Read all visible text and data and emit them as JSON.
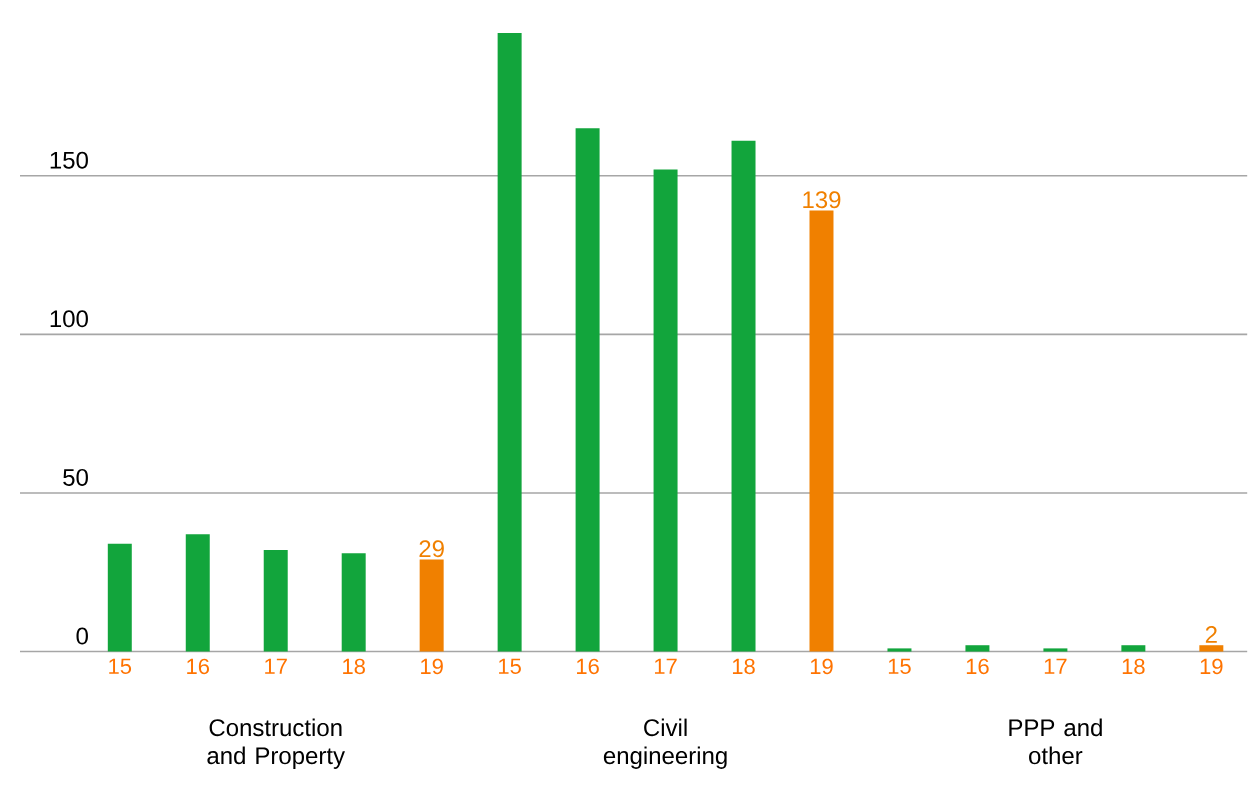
{
  "chart_data": {
    "type": "bar",
    "categories": [
      "15",
      "16",
      "17",
      "18",
      "19",
      "15",
      "16",
      "17",
      "18",
      "19",
      "15",
      "16",
      "17",
      "18",
      "19"
    ],
    "values": [
      34,
      37,
      32,
      31,
      29,
      195,
      165,
      152,
      161,
      139,
      1,
      2,
      1,
      2,
      2
    ],
    "colors": [
      "#12a53c",
      "#12a53c",
      "#12a53c",
      "#12a53c",
      "#f08000",
      "#12a53c",
      "#12a53c",
      "#12a53c",
      "#12a53c",
      "#f08000",
      "#12a53c",
      "#12a53c",
      "#12a53c",
      "#12a53c",
      "#f08000"
    ],
    "value_labels": [
      null,
      null,
      null,
      null,
      "29",
      null,
      null,
      null,
      null,
      "139",
      null,
      null,
      null,
      null,
      "2"
    ],
    "annotations": [
      "Construction and Property",
      "Civil engineering",
      "PPP and other"
    ],
    "ylim": [
      0,
      195
    ],
    "yticks": [
      0,
      50,
      100,
      150
    ],
    "grid": "y"
  }
}
